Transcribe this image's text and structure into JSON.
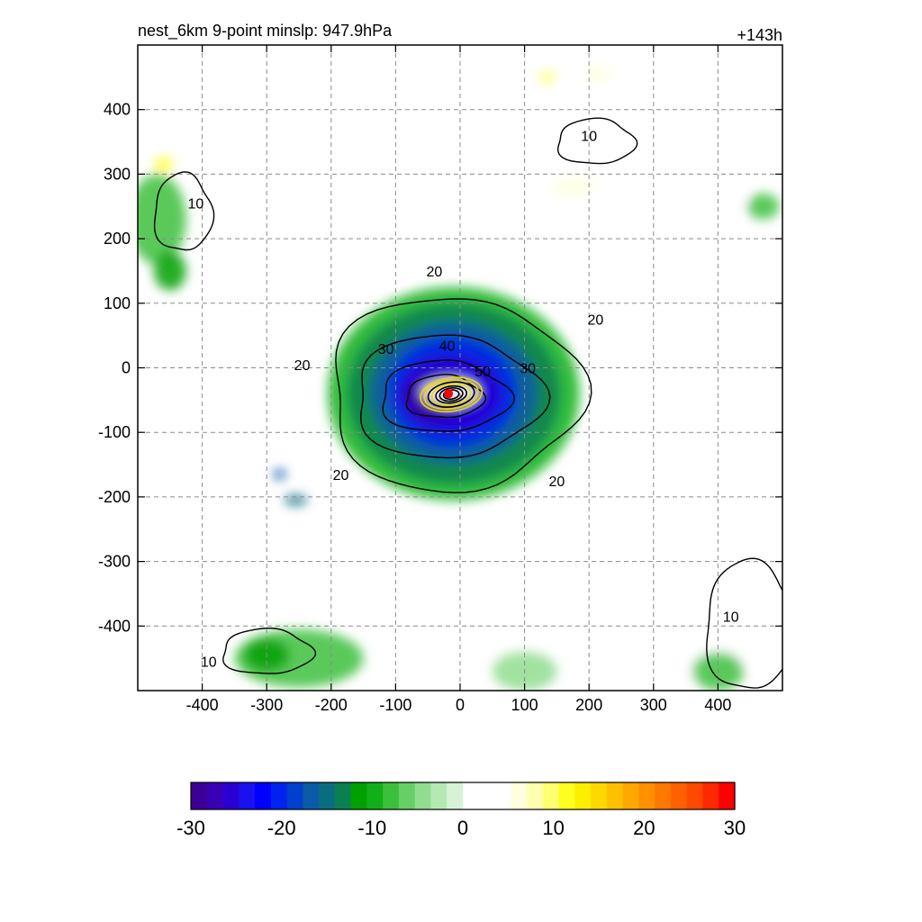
{
  "chart_data": {
    "type": "heatmap",
    "title": "nest_6km  9-point minslp: 947.9hPa",
    "right_title": "+143h",
    "xlim": [
      -500,
      500
    ],
    "ylim": [
      -500,
      500
    ],
    "x_ticks": [
      -400,
      -300,
      -200,
      -100,
      0,
      100,
      200,
      300,
      400
    ],
    "y_ticks": [
      -400,
      -300,
      -200,
      -100,
      0,
      100,
      200,
      300,
      400
    ],
    "grid": "dashed",
    "storm_center": {
      "x": -18,
      "y": -40
    },
    "shading": {
      "field_range": [
        -30,
        30
      ],
      "colorbar_ticks": [
        -30,
        -20,
        -10,
        0,
        10,
        20,
        30
      ],
      "colorbar_position": "bottom",
      "colors": [
        "#3c0096",
        "#3a00b4",
        "#2a00d2",
        "#1a10f0",
        "#0000ff",
        "#0022ee",
        "#0040cc",
        "#0b5aa8",
        "#0a6d7f",
        "#0a8050",
        "#00a000",
        "#11b018",
        "#3cbf3c",
        "#66cf66",
        "#90dd90",
        "#b4e9b4",
        "#d6f3d6",
        "#ffffff",
        "#ffffff",
        "#ffffff",
        "#ffffe0",
        "#ffffb0",
        "#ffff70",
        "#ffff20",
        "#ffee00",
        "#ffd800",
        "#ffc000",
        "#ffa800",
        "#ff9000",
        "#ff7800",
        "#ff6000",
        "#ff4800",
        "#ff2800",
        "#ff0000"
      ],
      "blobs": [
        {
          "x": -10,
          "y": -40,
          "rx": 195,
          "ry": 165,
          "value": -10
        },
        {
          "x": -10,
          "y": -40,
          "rx": 165,
          "ry": 140,
          "value": -13
        },
        {
          "x": -10,
          "y": -38,
          "rx": 130,
          "ry": 110,
          "value": -17
        },
        {
          "x": -12,
          "y": -38,
          "rx": 100,
          "ry": 85,
          "value": -21
        },
        {
          "x": -15,
          "y": -40,
          "rx": 80,
          "ry": 60,
          "value": -25
        },
        {
          "x": -40,
          "y": -45,
          "rx": 45,
          "ry": 35,
          "value": -29
        },
        {
          "x": -15,
          "y": -38,
          "rx": 45,
          "ry": 22,
          "value": 1
        },
        {
          "x": -280,
          "y": -165,
          "rx": 10,
          "ry": 8,
          "value": -16
        },
        {
          "x": -255,
          "y": -205,
          "rx": 18,
          "ry": 8,
          "value": -15
        },
        {
          "x": -470,
          "y": 230,
          "rx": 45,
          "ry": 70,
          "value": -8
        },
        {
          "x": -450,
          "y": 150,
          "rx": 25,
          "ry": 30,
          "value": -11
        },
        {
          "x": -460,
          "y": 315,
          "rx": 15,
          "ry": 10,
          "value": 12
        },
        {
          "x": -10,
          "y": 330,
          "rx": 90,
          "ry": 60,
          "value": 1
        },
        {
          "x": 185,
          "y": 280,
          "rx": 40,
          "ry": 15,
          "value": 6
        },
        {
          "x": 225,
          "y": 270,
          "rx": 35,
          "ry": 18,
          "value": 5
        },
        {
          "x": 135,
          "y": 450,
          "rx": 12,
          "ry": 10,
          "value": 9
        },
        {
          "x": 215,
          "y": 455,
          "rx": 18,
          "ry": 12,
          "value": 6
        },
        {
          "x": 400,
          "y": 270,
          "rx": 45,
          "ry": 40,
          "value": 1
        },
        {
          "x": 470,
          "y": 250,
          "rx": 25,
          "ry": 20,
          "value": -8
        },
        {
          "x": 420,
          "y": -20,
          "rx": 80,
          "ry": 150,
          "value": 1
        },
        {
          "x": 360,
          "y": -150,
          "rx": 50,
          "ry": 80,
          "value": 1
        },
        {
          "x": -120,
          "y": 180,
          "rx": 60,
          "ry": 40,
          "value": 1
        },
        {
          "x": -330,
          "y": 110,
          "rx": 40,
          "ry": 35,
          "value": 1
        },
        {
          "x": -380,
          "y": -130,
          "rx": 60,
          "ry": 40,
          "value": 1
        },
        {
          "x": 380,
          "y": -420,
          "rx": 80,
          "ry": 70,
          "value": 1
        },
        {
          "x": 440,
          "y": -330,
          "rx": 60,
          "ry": 80,
          "value": 1
        },
        {
          "x": -250,
          "y": -450,
          "rx": 100,
          "ry": 45,
          "value": -8
        },
        {
          "x": -300,
          "y": -445,
          "rx": 35,
          "ry": 25,
          "value": -12
        },
        {
          "x": 400,
          "y": -470,
          "rx": 40,
          "ry": 30,
          "value": -8
        },
        {
          "x": 100,
          "y": -470,
          "rx": 50,
          "ry": 30,
          "value": -5
        }
      ]
    },
    "contours": [
      {
        "label": "20",
        "center": [
          -10,
          -40
        ],
        "rx": 195,
        "ry": 150,
        "label_at": [
          [
            -40,
            150
          ],
          [
            210,
            75
          ],
          [
            150,
            -175
          ],
          [
            -185,
            -165
          ],
          [
            -245,
            5
          ]
        ]
      },
      {
        "label": "30",
        "center": [
          -20,
          -45
        ],
        "rx": 145,
        "ry": 95,
        "label_at": [
          [
            -115,
            30
          ],
          [
            105,
            0
          ]
        ]
      },
      {
        "label": "40",
        "center": [
          -25,
          -45
        ],
        "rx": 100,
        "ry": 55,
        "label_at": [
          [
            -20,
            35
          ]
        ]
      },
      {
        "label": "50",
        "center": [
          -25,
          -45
        ],
        "rx": 60,
        "ry": 33,
        "label_at": [
          [
            35,
            -5
          ]
        ]
      },
      {
        "label": "10",
        "center": [
          210,
          350
        ],
        "rx": 60,
        "ry": 35,
        "label_at": [
          [
            200,
            360
          ]
        ]
      },
      {
        "label": "10",
        "center": [
          -430,
          240
        ],
        "rx": 45,
        "ry": 60,
        "label_at": [
          [
            -410,
            255
          ]
        ]
      },
      {
        "label": "10",
        "center": [
          -300,
          -440
        ],
        "rx": 70,
        "ry": 35,
        "label_at": [
          [
            -390,
            -455
          ]
        ]
      },
      {
        "label": "10",
        "center": [
          450,
          -400
        ],
        "rx": 70,
        "ry": 100,
        "label_at": [
          [
            420,
            -385
          ]
        ]
      }
    ],
    "inner_contours": [
      {
        "rx": 48,
        "ry": 26,
        "color": "#e8d800"
      },
      {
        "rx": 42,
        "ry": 22,
        "color": "#e8d800"
      },
      {
        "rx": 36,
        "ry": 19,
        "color": "#000000"
      },
      {
        "rx": 30,
        "ry": 16,
        "color": "#e8d800"
      },
      {
        "rx": 24,
        "ry": 13,
        "color": "#000000"
      },
      {
        "rx": 18,
        "ry": 10,
        "color": "#000000"
      },
      {
        "rx": 12,
        "ry": 7,
        "color": "#000000"
      }
    ],
    "accent_color": "#ff0000"
  }
}
